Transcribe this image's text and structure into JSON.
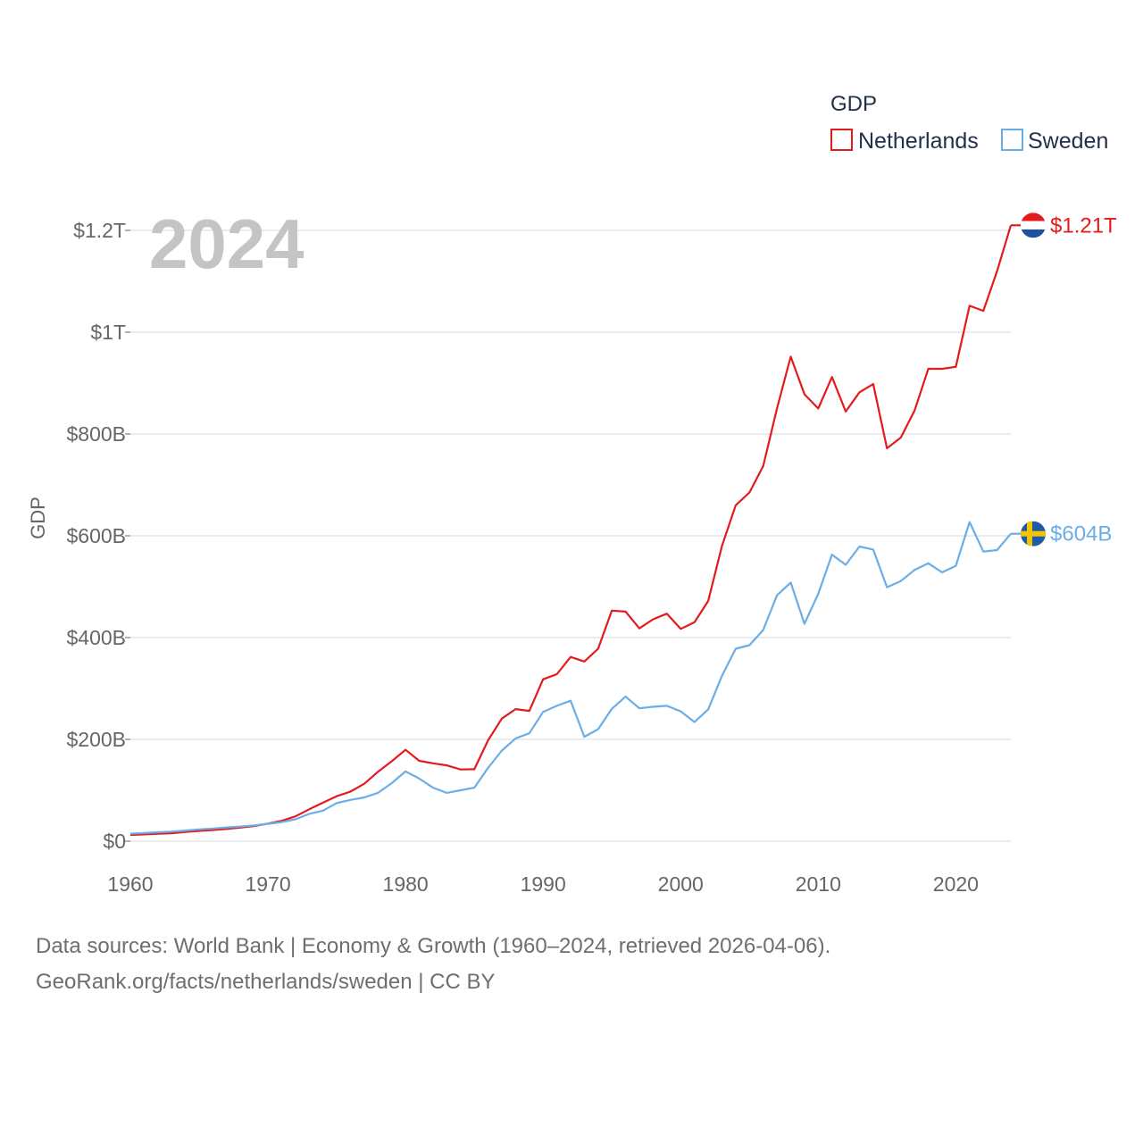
{
  "chart_data": {
    "type": "line",
    "title": "GDP",
    "ylabel": "GDP",
    "xlabel": "",
    "highlight_year_label": "2024",
    "xlim": [
      1960,
      2024
    ],
    "ylim": [
      0,
      1200000000000
    ],
    "x_ticks": [
      1960,
      1970,
      1980,
      1990,
      2000,
      2010,
      2020
    ],
    "y_ticks": [
      {
        "value": 0,
        "label": "$0"
      },
      {
        "value": 200000000000,
        "label": "$200B"
      },
      {
        "value": 400000000000,
        "label": "$400B"
      },
      {
        "value": 600000000000,
        "label": "$600B"
      },
      {
        "value": 800000000000,
        "label": "$800B"
      },
      {
        "value": 1000000000000,
        "label": "$1T"
      },
      {
        "value": 1200000000000,
        "label": "$1.2T"
      }
    ],
    "legend": {
      "title": "GDP",
      "placement": "top-right"
    },
    "x": [
      1960,
      1961,
      1962,
      1963,
      1964,
      1965,
      1966,
      1967,
      1968,
      1969,
      1970,
      1971,
      1972,
      1973,
      1974,
      1975,
      1976,
      1977,
      1978,
      1979,
      1980,
      1981,
      1982,
      1983,
      1984,
      1985,
      1986,
      1987,
      1988,
      1989,
      1990,
      1991,
      1992,
      1993,
      1994,
      1995,
      1996,
      1997,
      1998,
      1999,
      2000,
      2001,
      2002,
      2003,
      2004,
      2005,
      2006,
      2007,
      2008,
      2009,
      2010,
      2011,
      2012,
      2013,
      2014,
      2015,
      2016,
      2017,
      2018,
      2019,
      2020,
      2021,
      2022,
      2023,
      2024
    ],
    "series": [
      {
        "name": "Netherlands",
        "color": "#e41a1c",
        "end_label": "$1.21T",
        "flag": "netherlands-flag-icon",
        "values": [
          12.3,
          13.3,
          14.5,
          15.6,
          18.0,
          20.1,
          21.9,
          24.0,
          26.6,
          29.8,
          34.6,
          40.0,
          48.7,
          62.6,
          75.6,
          88.5,
          97.3,
          112.8,
          136.4,
          157.0,
          179.5,
          157.9,
          153.0,
          149.0,
          140.9,
          141.4,
          198.2,
          240.9,
          259.5,
          256.0,
          318.0,
          328.0,
          362.0,
          353.0,
          378.0,
          453.0,
          451.0,
          418.0,
          436.0,
          447.0,
          417.0,
          430.0,
          472.0,
          580.0,
          660.0,
          685.0,
          737.0,
          850.0,
          952.0,
          878.0,
          850.0,
          912.0,
          844.0,
          882.0,
          898.0,
          772.0,
          793.0,
          846.0,
          928.0,
          928.0,
          932.0,
          1052.0,
          1042.0,
          1120.0,
          1210.0
        ]
      },
      {
        "name": "Sweden",
        "color": "#6aaee8",
        "end_label": "$604B",
        "flag": "sweden-flag-icon",
        "values": [
          14.8,
          16.1,
          17.5,
          18.8,
          20.9,
          23.1,
          25.0,
          27.0,
          28.7,
          31.0,
          34.0,
          37.5,
          43.0,
          53.7,
          60.0,
          75.0,
          81.0,
          86.0,
          95.0,
          114.0,
          137.0,
          123.0,
          105.0,
          95.0,
          100.0,
          105.0,
          144.0,
          178.0,
          202.0,
          212.0,
          254.0,
          266.0,
          276.0,
          205.0,
          220.0,
          260.0,
          284.0,
          261.0,
          264.0,
          266.0,
          255.0,
          234.0,
          259.0,
          325.0,
          378.0,
          385.0,
          415.0,
          483.0,
          508.0,
          427.0,
          486.0,
          563.0,
          543.0,
          579.0,
          573.0,
          499.0,
          511.0,
          533.0,
          546.0,
          528.0,
          541.0,
          627.0,
          569.0,
          572.0,
          604.0
        ]
      }
    ]
  },
  "footer": {
    "line1": "Data sources: World Bank | Economy & Growth (1960–2024, retrieved 2026-04-06).",
    "line2": "GeoRank.org/facts/netherlands/sweden | CC BY"
  }
}
